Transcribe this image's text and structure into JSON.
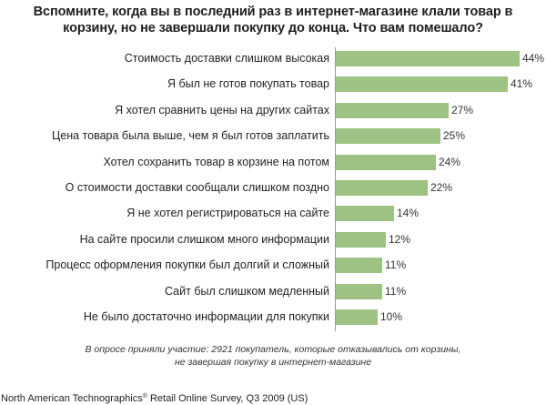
{
  "title_line1": "Вспомните, когда вы в последний раз в интернет-магазине клали товар в",
  "title_line2": "корзину, но не завершали покупку до конца. Что вам помешало?",
  "footnote_line1": "В опросе приняли участие: 2921 покупатель, которые отказывались от корзины,",
  "footnote_line2": "не завершая покупку в интернет-магазине",
  "source": {
    "prefix": "North American Technographics",
    "mark": "®",
    "suffix": " Retail Online Survey, Q3 2009 (US)"
  },
  "colors": {
    "bar": "#9dc283",
    "axis": "#9a9a9a"
  },
  "chart_data": {
    "type": "bar",
    "orientation": "horizontal",
    "title": "Вспомните, когда вы в последний раз в интернет-магазине клали товар в корзину, но не завершали покупку до конца. Что вам помешало?",
    "xlabel": "",
    "ylabel": "",
    "unit": "%",
    "xlim": [
      0,
      50
    ],
    "grid": false,
    "legend": null,
    "categories": [
      "Стоимость доставки слишком высокая",
      "Я был не готов покупать товар",
      "Я хотел сравнить цены на других сайтах",
      "Цена товара была выше, чем я был готов заплатить",
      "Хотел сохранить товар в корзине на потом",
      "О стоимости доставки сообщали слишком поздно",
      "Я не хотел регистрироваться на сайте",
      "На сайте просили слишком много информации",
      "Процесс оформления покупки был долгий и сложный",
      "Сайт был слишком медленный",
      "Не было достаточно информации для покупки"
    ],
    "values": [
      44,
      41,
      27,
      25,
      24,
      22,
      14,
      12,
      11,
      11,
      10
    ],
    "value_labels": [
      "44%",
      "41%",
      "27%",
      "25%",
      "24%",
      "22%",
      "14%",
      "12%",
      "11%",
      "11%",
      "10%"
    ],
    "annotations": [
      "В опросе приняли участие: 2921 покупатель, которые отказывались от корзины, не завершая покупку в интернет-магазине"
    ],
    "source": "North American Technographics® Retail Online Survey, Q3 2009 (US)"
  }
}
